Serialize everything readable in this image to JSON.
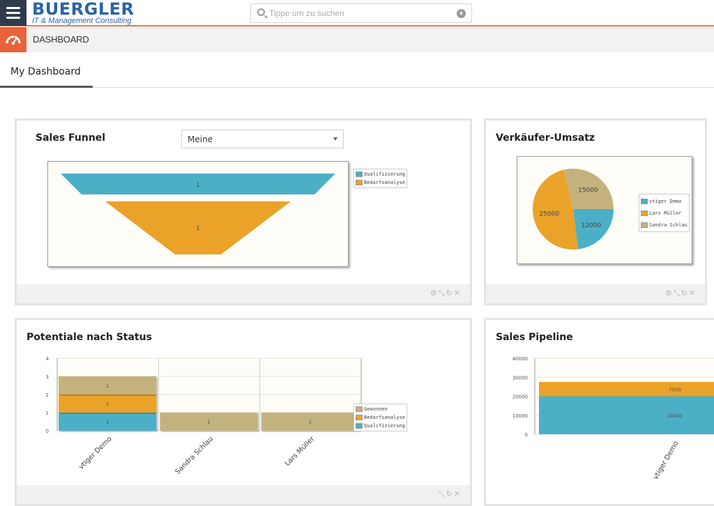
{
  "header": {
    "logo_main": "BUERGLER",
    "logo_sub": "IT & Management Consulting",
    "search_placeholder": "Tippe um zu suchen"
  },
  "module": {
    "title": "DASHBOARD"
  },
  "tabs": [
    {
      "label": "My Dashboard",
      "active": true
    }
  ],
  "colors": {
    "teal": "#4bb0c6",
    "orange": "#eaa229",
    "tan": "#c4b27e",
    "accent": "#e9633a",
    "brand": "#2a64a8"
  },
  "widgets": {
    "sales_funnel": {
      "title": "Sales Funnel",
      "filter_value": "Meine",
      "actions": [
        "gear-icon",
        "expand-icon",
        "refresh-icon",
        "close-icon"
      ]
    },
    "verkaeufer_umsatz": {
      "title": "Verkäufer-Umsatz",
      "actions": [
        "gear-icon",
        "expand-icon",
        "refresh-icon",
        "close-icon"
      ]
    },
    "potentiale": {
      "title": "Potentiale nach Status",
      "actions": [
        "expand-icon",
        "refresh-icon",
        "close-icon"
      ]
    },
    "pipeline": {
      "title": "Sales Pipeline"
    }
  },
  "chart_data": [
    {
      "type": "funnel",
      "title": "Sales Funnel",
      "categories": [
        "Qualifizierung",
        "Bedarfsanalyse"
      ],
      "values": [
        1,
        1
      ],
      "colors": [
        "#4bb0c6",
        "#eaa229"
      ],
      "legend": [
        "Qualifizierung",
        "Bedarfsanalyse"
      ],
      "legend_position": "right"
    },
    {
      "type": "pie",
      "title": "Verkäufer-Umsatz",
      "categories": [
        "vtiger Demo",
        "Lars Müller",
        "Sandra Schlau"
      ],
      "values": [
        12000,
        25000,
        15000
      ],
      "colors": [
        "#4bb0c6",
        "#eaa229",
        "#c4b27e"
      ],
      "legend_position": "right"
    },
    {
      "type": "bar",
      "stacked": true,
      "title": "Potentiale nach Status",
      "categories": [
        "vtiger Demo",
        "Sandra Schlau",
        "Lars Müller"
      ],
      "series": [
        {
          "name": "Qualifizierung",
          "values": [
            1,
            0,
            0
          ],
          "color": "#4bb0c6"
        },
        {
          "name": "Bedarfsanalyse",
          "values": [
            1,
            0,
            0
          ],
          "color": "#eaa229"
        },
        {
          "name": "Gewonnen",
          "values": [
            1,
            1,
            1
          ],
          "color": "#c4b27e"
        }
      ],
      "legend": [
        "Gewonnen",
        "Bedarfsanalyse",
        "Qualifizierung"
      ],
      "yticks": [
        0,
        1,
        2,
        3,
        4
      ],
      "ylim": [
        0,
        4
      ],
      "legend_position": "right"
    },
    {
      "type": "bar",
      "stacked": true,
      "title": "Sales Pipeline",
      "categories": [
        "vtiger Demo"
      ],
      "series": [
        {
          "values": [
            20000
          ],
          "color": "#4bb0c6"
        },
        {
          "values": [
            7500
          ],
          "color": "#eaa229"
        }
      ],
      "yticks": [
        0,
        10000,
        20000,
        30000,
        40000
      ],
      "ylim": [
        0,
        40000
      ]
    }
  ]
}
